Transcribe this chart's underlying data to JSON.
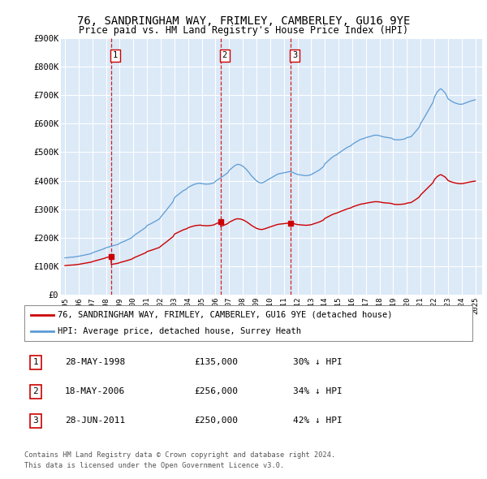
{
  "title": "76, SANDRINGHAM WAY, FRIMLEY, CAMBERLEY, GU16 9YE",
  "subtitle": "Price paid vs. HM Land Registry's House Price Index (HPI)",
  "background_color": "#ffffff",
  "plot_bg_color": "#dce9f7",
  "grid_color": "#ffffff",
  "ylim": [
    0,
    900000
  ],
  "yticks": [
    0,
    100000,
    200000,
    300000,
    400000,
    500000,
    600000,
    700000,
    800000,
    900000
  ],
  "ytick_labels": [
    "£0",
    "£100K",
    "£200K",
    "£300K",
    "£400K",
    "£500K",
    "£600K",
    "£700K",
    "£800K",
    "£900K"
  ],
  "hpi_color": "#5b9bd5",
  "price_color": "#cc0000",
  "vline_color": "#cc0000",
  "sale_year_decimals": [
    1998.38,
    2006.38,
    2011.49
  ],
  "sale_prices": [
    135000,
    256000,
    250000
  ],
  "sale_labels": [
    "1",
    "2",
    "3"
  ],
  "sale_pct": [
    "30% ↓ HPI",
    "34% ↓ HPI",
    "42% ↓ HPI"
  ],
  "sale_display_dates": [
    "28-MAY-1998",
    "18-MAY-2006",
    "28-JUN-2011"
  ],
  "sale_prices_display": [
    "£135,000",
    "£256,000",
    "£250,000"
  ],
  "legend_line1": "76, SANDRINGHAM WAY, FRIMLEY, CAMBERLEY, GU16 9YE (detached house)",
  "legend_line2": "HPI: Average price, detached house, Surrey Heath",
  "footer_line1": "Contains HM Land Registry data © Crown copyright and database right 2024.",
  "footer_line2": "This data is licensed under the Open Government Licence v3.0.",
  "xlim_start": 1994.7,
  "xlim_end": 2025.5
}
